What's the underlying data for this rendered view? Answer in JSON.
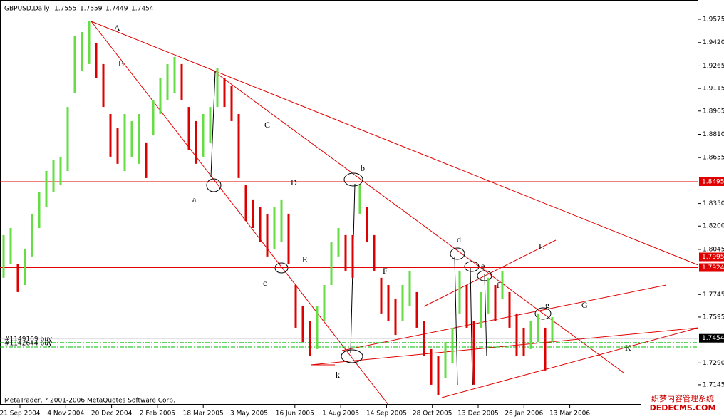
{
  "chart_data": {
    "type": "ohlc",
    "title": "GBPUSD,Daily",
    "header_values": [
      1.7555,
      1.7559,
      1.7449,
      1.7454
    ],
    "bars": {
      "high": [
        1.814,
        1.8187,
        1.795,
        1.8045,
        1.8282,
        1.8424,
        1.8566,
        1.8637,
        1.8661,
        1.8992,
        1.9466,
        1.949,
        1.9561,
        1.9419,
        1.9277,
        1.8945,
        1.885,
        1.8945,
        1.8898,
        1.8945,
        1.8756,
        1.904,
        1.9182,
        1.9277,
        1.9324,
        1.9277,
        1.8992,
        1.8898,
        1.8945,
        1.8992,
        1.9253,
        1.9182,
        1.9135,
        1.8945,
        1.8471,
        1.8377,
        1.8329,
        1.8282,
        1.8329,
        1.8377,
        1.8282,
        1.7808,
        1.7666,
        1.7571,
        1.7666,
        1.7808,
        1.8092,
        1.8187,
        1.814,
        1.814,
        1.8471,
        1.8329,
        1.814,
        1.7856,
        1.7808,
        1.7714,
        1.7808,
        1.7903,
        1.7761,
        1.7571,
        1.7382,
        1.7334,
        1.7429,
        1.7524,
        1.7903,
        1.7808,
        1.7571,
        1.7761,
        1.7856,
        1.7808,
        1.7903,
        1.7761,
        1.7619,
        1.7524,
        1.7571,
        1.7619,
        1.7524,
        1.7595
      ],
      "low": [
        1.7856,
        1.795,
        1.7761,
        1.7808,
        1.7998,
        1.8187,
        1.8329,
        1.8424,
        1.8471,
        1.8566,
        1.9087,
        1.9229,
        1.9277,
        1.9182,
        1.8992,
        1.8661,
        1.8614,
        1.8566,
        1.8661,
        1.8614,
        1.8519,
        1.8803,
        1.8945,
        1.904,
        1.9087,
        1.904,
        1.8708,
        1.8614,
        1.8661,
        1.8756,
        1.8992,
        1.8992,
        1.8898,
        1.8519,
        1.8234,
        1.8187,
        1.8092,
        1.7998,
        1.8045,
        1.8092,
        1.795,
        1.7524,
        1.7429,
        1.7334,
        1.7382,
        1.7571,
        1.7808,
        1.7998,
        1.7903,
        1.7856,
        1.8282,
        1.8092,
        1.7903,
        1.7619,
        1.7571,
        1.7476,
        1.7571,
        1.7666,
        1.7524,
        1.7334,
        1.7145,
        1.7074,
        1.7192,
        1.7287,
        1.7619,
        1.7524,
        1.7145,
        1.7524,
        1.7619,
        1.7571,
        1.7714,
        1.7524,
        1.7334,
        1.7334,
        1.7382,
        1.7429,
        1.724,
        1.7429
      ]
    },
    "up_color": "#66dd44",
    "down_color": "#dd0000",
    "ylim": [
      1.7012,
      1.9703
    ],
    "yticks": [
      {
        "value": 1.9575,
        "label": "1.9575"
      },
      {
        "value": 1.942,
        "label": "1.9420"
      },
      {
        "value": 1.9265,
        "label": "1.9265"
      },
      {
        "value": 1.9115,
        "label": "1.9115"
      },
      {
        "value": 1.8965,
        "label": "1.8965"
      },
      {
        "value": 1.881,
        "label": "1.8810"
      },
      {
        "value": 1.8655,
        "label": "1.8655"
      },
      {
        "value": 1.835,
        "label": "1.8350"
      },
      {
        "value": 1.82,
        "label": "1.8200"
      },
      {
        "value": 1.8045,
        "label": "1.8045"
      },
      {
        "value": 1.7745,
        "label": "1.7745"
      },
      {
        "value": 1.7595,
        "label": "1.7595"
      },
      {
        "value": 1.729,
        "label": "1.7290"
      },
      {
        "value": 1.7145,
        "label": "1.7145"
      }
    ],
    "xtick_labels": [
      "21 Sep 2004",
      "4 Nov 2004",
      "20 Dec 2004",
      "2 Feb 2005",
      "18 Mar 2005",
      "3 May 2005",
      "16 Jun 2005",
      "1 Aug 2005",
      "14 Sep 2005",
      "28 Oct 2005",
      "13 Dec 2005",
      "26 Jan 2006",
      "13 Mar 2006"
    ],
    "levels": [
      {
        "value": 1.8495,
        "label": "1.8495"
      },
      {
        "value": 1.7995,
        "label": "1.7995"
      },
      {
        "value": 1.7924,
        "label": "1.7924"
      }
    ],
    "level_color": "#e00000",
    "current_price": {
      "value": 1.7454,
      "label": "1.7454"
    },
    "orders": [
      {
        "label": "#1149169 buy",
        "price": 1.7425
      },
      {
        "label": "#1142644 buy",
        "price": 1.7396
      }
    ],
    "order_color": "#00bb00",
    "annotations": [
      "A",
      "B",
      "C",
      "D",
      "E",
      "F",
      "G",
      "K",
      "L",
      "a",
      "b",
      "c",
      "d",
      "e",
      "f",
      "g",
      "k"
    ],
    "footer": "MetaTrader, ? 2001-2006 MetaQuotes Software Corp.",
    "watermark": [
      "织梦内容管理系统",
      "DEDECMS.COM"
    ]
  }
}
